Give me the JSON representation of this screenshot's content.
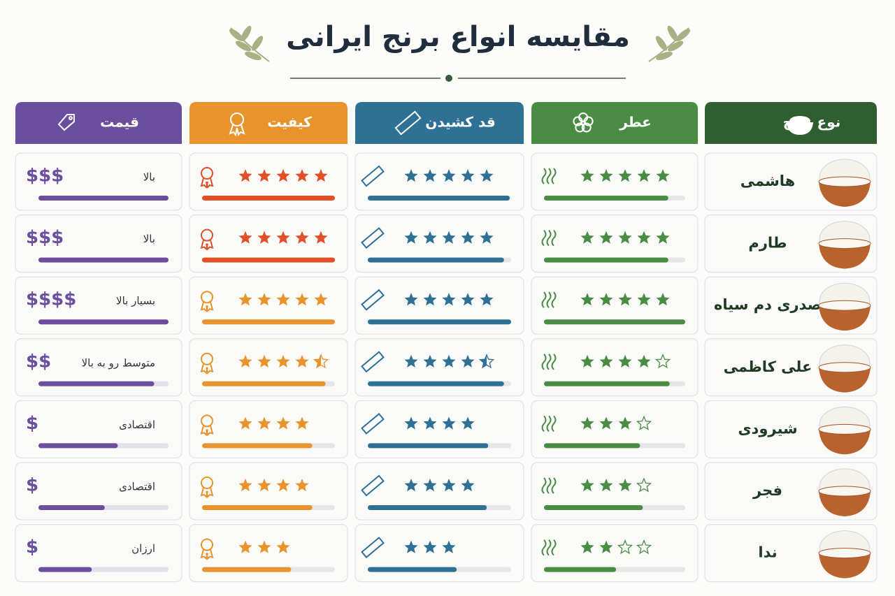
{
  "title": "مقایسه انواع برنج ایرانی",
  "headers": [
    {
      "label": "نوع برنج",
      "color": "#2f5e30"
    },
    {
      "label": "عطر",
      "color": "#4a8c43"
    },
    {
      "label": "قد کشیدن",
      "color": "#2e7195"
    },
    {
      "label": "کیفیت",
      "color": "#e8932c"
    },
    {
      "label": "قیمت",
      "color": "#6b4f9e"
    }
  ],
  "rows": [
    {
      "name": "هاشمی",
      "aroma": {
        "rating": 5,
        "stars": 5,
        "bar": 88
      },
      "length": {
        "rating": 5,
        "stars": 5,
        "bar": 99
      },
      "quality": {
        "rating": 5,
        "stars": 5,
        "bar": 100,
        "color": "#e2502a"
      },
      "price": {
        "symbol": "$$$",
        "label": "بالا",
        "bar": 100
      }
    },
    {
      "name": "طارم",
      "aroma": {
        "rating": 5,
        "stars": 5,
        "bar": 88
      },
      "length": {
        "rating": 5,
        "stars": 5,
        "bar": 95
      },
      "quality": {
        "rating": 5,
        "stars": 5,
        "bar": 100,
        "color": "#e2502a"
      },
      "price": {
        "symbol": "$$$",
        "label": "بالا",
        "bar": 100
      }
    },
    {
      "name": "صدری دم سیاه",
      "aroma": {
        "rating": 5,
        "stars": 5,
        "bar": 100
      },
      "length": {
        "rating": 5,
        "stars": 5,
        "bar": 100
      },
      "quality": {
        "rating": 5,
        "stars": 5,
        "bar": 100
      },
      "price": {
        "symbol": "$$$$",
        "label": "بسیار بالا",
        "bar": 100
      }
    },
    {
      "name": "علی کاظمی",
      "aroma": {
        "rating": 4,
        "stars": 5,
        "bar": 89
      },
      "length": {
        "rating": 4.5,
        "stars": 5,
        "bar": 95
      },
      "quality": {
        "rating": 4.5,
        "stars": 5,
        "bar": 93
      },
      "price": {
        "symbol": "$$",
        "label": "متوسط رو به بالا",
        "bar": 89
      }
    },
    {
      "name": "شیرودی",
      "aroma": {
        "rating": 3,
        "stars": 4,
        "bar": 68
      },
      "length": {
        "rating": 4,
        "stars": 4,
        "bar": 84
      },
      "quality": {
        "rating": 4,
        "stars": 4,
        "bar": 83
      },
      "price": {
        "symbol": "$",
        "label": "اقتصادی",
        "bar": 61
      }
    },
    {
      "name": "فجر",
      "aroma": {
        "rating": 3,
        "stars": 4,
        "bar": 70
      },
      "length": {
        "rating": 4,
        "stars": 4,
        "bar": 83
      },
      "quality": {
        "rating": 4,
        "stars": 4,
        "bar": 83
      },
      "price": {
        "symbol": "$",
        "label": "اقتصادی",
        "bar": 51
      }
    },
    {
      "name": "ندا",
      "aroma": {
        "rating": 2,
        "stars": 4,
        "bar": 51
      },
      "length": {
        "rating": 3,
        "stars": 3,
        "bar": 62
      },
      "quality": {
        "rating": 3,
        "stars": 3,
        "bar": 67
      },
      "price": {
        "symbol": "$",
        "label": "ارزان",
        "bar": 41
      }
    }
  ]
}
